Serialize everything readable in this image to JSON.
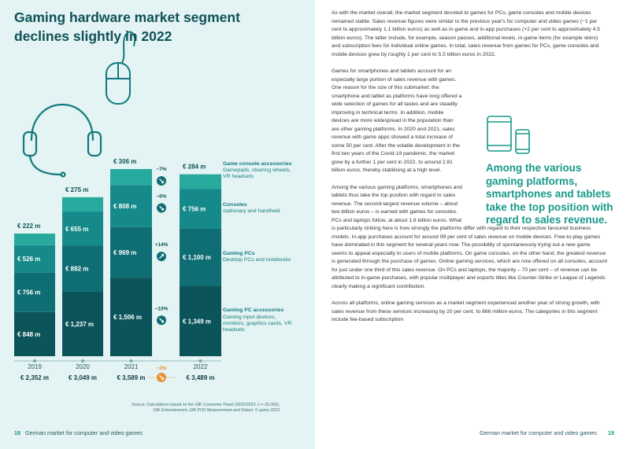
{
  "left_page": {
    "title": [
      "Gaming hardware market segment",
      "declines slightly in 2022"
    ],
    "source": [
      "Source: Calculations based on the GfK Consumer Panel (2022/2023; n = 25,000),",
      "GfK Entertainment, GfK POS Measurement and Dataxl. © game 2023"
    ],
    "footer_number": "18",
    "footer_text": "German market for computer and video games"
  },
  "chart_data": {
    "type": "stacked-bar",
    "categories": [
      "2019",
      "2020",
      "2021",
      "2022"
    ],
    "series": [
      {
        "name": "Gaming PC accessories",
        "description": "Gaming input devices, monitors, graphics cards, VR headsets",
        "color": "#0b5459",
        "values": [
          848,
          1237,
          1506,
          1349
        ],
        "value_labels": [
          "€ 848 m",
          "€ 1,237 m",
          "€ 1,506 m",
          "€ 1,349 m"
        ],
        "change": {
          "value": -10,
          "label": "−10%"
        }
      },
      {
        "name": "Gaming PCs",
        "description": "Desktop PCs and notebooks",
        "color": "#0f6e74",
        "values": [
          756,
          882,
          969,
          1100
        ],
        "value_labels": [
          "€ 756 m",
          "€ 882 m",
          "€ 969 m",
          "€ 1,100 m"
        ],
        "change": {
          "value": 14,
          "label": "+14%"
        }
      },
      {
        "name": "Consoles",
        "description": "stationary and handheld",
        "color": "#168a8b",
        "values": [
          526,
          655,
          808,
          756
        ],
        "value_labels": [
          "€ 526 m",
          "€ 655 m",
          "€ 808 m",
          "€ 756 m"
        ],
        "change": {
          "value": -6,
          "label": "−6%"
        }
      },
      {
        "name": "Game console accessories",
        "description": "Gamepads, steering wheels, VR headsets",
        "color": "#27aa9d",
        "values": [
          222,
          275,
          306,
          284
        ],
        "value_labels": [
          "€ 222 m",
          "€ 275 m",
          "€ 306 m",
          "€ 284 m"
        ],
        "change": {
          "value": -7,
          "label": "−7%"
        }
      }
    ],
    "totals": {
      "values": [
        2352,
        3049,
        3589,
        3489
      ],
      "value_labels": [
        "€ 2,352 m",
        "€ 3,049 m",
        "€ 3,589 m",
        "€ 3,489 m"
      ]
    },
    "total_change": {
      "value": -3,
      "label": "−3%"
    }
  },
  "right_page": {
    "paragraphs": [
      "As with the market overall, the market segment devoted to games for PCs, game consoles and mobile devices remained stable. Sales revenue figures were similar to the previous year's for computer and video games (−1 per cent to approximately 1.1 billion euros) as well as in-game and in-app purchases (+2 per cent to approximately 4.5 billion euros). The latter include, for example, season passes, additional levels, in-game items (for example skins) and subscription fees for individual online games. In total, sales revenue from games for PCs, game consoles and mobile devices grew by roughly 1 per cent to 5.5 billion euros in 2022.",
      "Games for smartphones and tablets account for an especially large portion of sales revenue with games. One reason for the size of this submarket: the smartphone and tablet as platforms have long offered a wide selection of games for all tastes and are steadily improving in technical terms. In addition, mobile devices are more widespread in the population than are other gaming platforms. In 2020 and 2021, sales revenue with game apps showed a total increase of some 50 per cent. After the volatile development in the first two years of the Covid-19 pandemic, the market grew by a further 1 per cent in 2022, to around 2.81 billion euros, thereby stabilising at a high level.",
      "Among the various gaming platforms, smartphones and tablets thus take the top position with regard to sales revenue. The second-largest revenue volume – about two billion euros – is earned with games for consoles. PCs and laptops follow, at about 1.6 billion euros. What is particularly striking here is how strongly the platforms differ with regard to their respective favoured business models. In-app purchases account for around 99 per cent of sales revenue on mobile devices. Free-to-play games have dominated in this segment for several years now. The possibility of spontaneously trying out a new game seems to appeal especially to users of mobile platforms. On game consoles, on the other hand, the greatest revenue is generated through the purchase of games. Online gaming services, which are now offered on all consoles, account for just under one third of this sales revenue. On PCs and laptops, the majority – 70 per cent – of revenue can be attributed to in-game purchases, with popular multiplayer and esports titles like Counter-Strike or League of Legends clearly making a significant contribution.",
      "Across all platforms, online gaming services as a market segment experienced another year of strong growth, with sales revenue from these services increasing by 20 per cent, to 866 million euros. The categories in this segment include fee-based subscription"
    ],
    "pull_quote": "Among the various gaming platforms, smartphones and tablets take the top position with regard to sales revenue.",
    "footer_text": "German market for computer and video games",
    "footer_number": "19"
  }
}
